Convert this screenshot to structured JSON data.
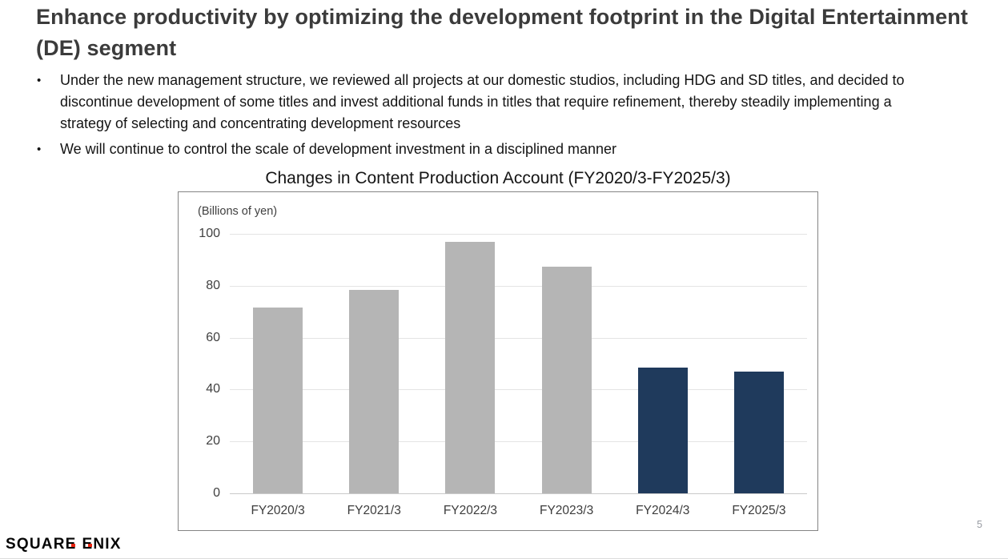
{
  "slide": {
    "heading": "Enhance productivity by optimizing the development footprint in the Digital Entertainment (DE) segment",
    "bullet_glyph": "•",
    "bullets": [
      "Under the new management structure, we reviewed all projects at our domestic studios, including HDG and SD titles, and decided to discontinue development of some titles and invest additional funds in titles that require refinement, thereby steadily implementing a strategy of selecting and concentrating development resources",
      "We will continue to control the scale of development investment in a disciplined manner"
    ],
    "page_number": "5",
    "logo": {
      "full_name": "SQUARE ENIX",
      "part_squar": "SQUAR",
      "part_e1": "E",
      "part_e2": "E",
      "part_nix": "NIX",
      "accent_color": "#e8230f",
      "text_color": "#050505"
    }
  },
  "chart_data": {
    "type": "bar",
    "title": "Changes in Content Production Account (FY2020/3-FY2025/3)",
    "unit_label": "(Billions of yen)",
    "xlabel": "",
    "ylabel": "",
    "categories": [
      "FY2020/3",
      "FY2021/3",
      "FY2022/3",
      "FY2023/3",
      "FY2024/3",
      "FY2025/3"
    ],
    "values": [
      71.5,
      78.5,
      97.0,
      87.5,
      48.5,
      46.8
    ],
    "yticks": [
      100,
      80,
      60,
      40,
      20,
      0
    ],
    "ylim": [
      0,
      100
    ],
    "grid": true,
    "legend": false,
    "bar_colors": [
      "#b5b5b5",
      "#b5b5b5",
      "#b5b5b5",
      "#b5b5b5",
      "#1f3a5c",
      "#1f3a5c"
    ],
    "colors": {
      "historical_bar": "#b5b5b5",
      "recent_bar": "#1f3a5c",
      "gridline": "#e4e4e4",
      "chart_border": "#848484"
    }
  }
}
